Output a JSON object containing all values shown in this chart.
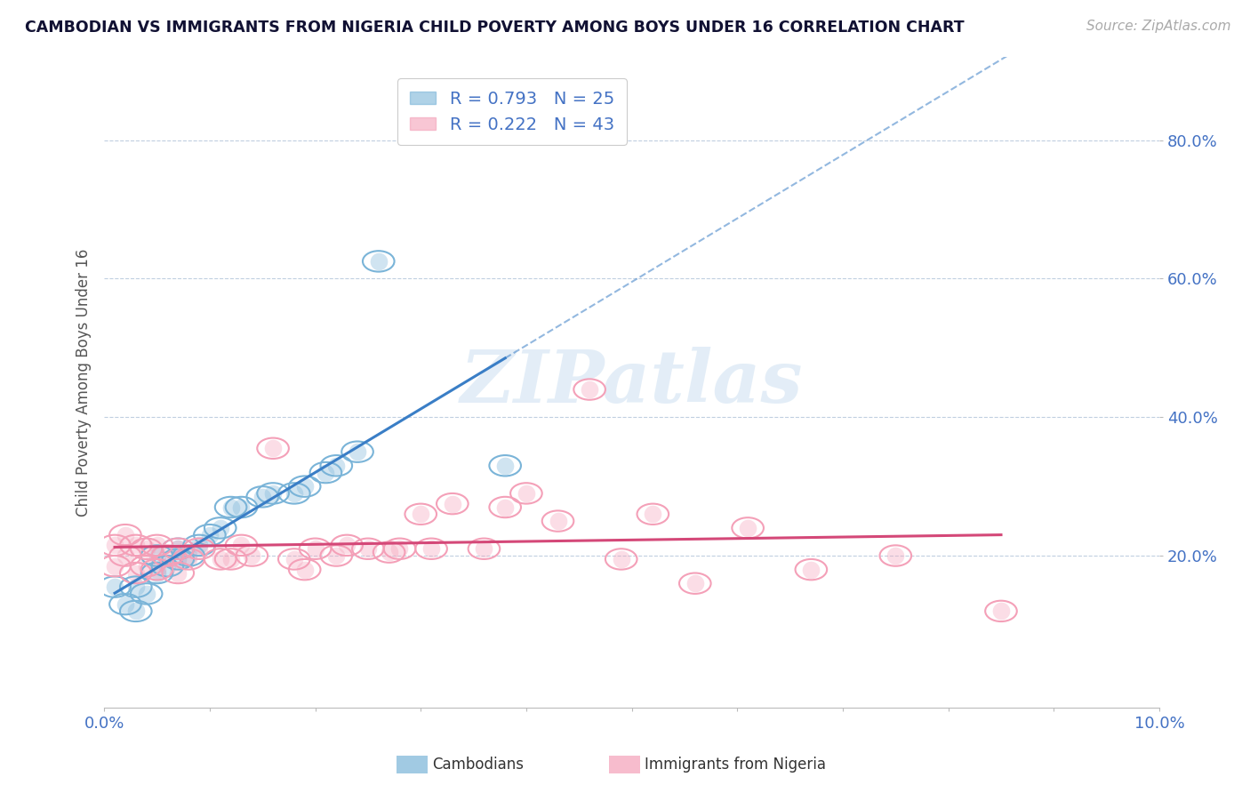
{
  "title": "CAMBODIAN VS IMMIGRANTS FROM NIGERIA CHILD POVERTY AMONG BOYS UNDER 16 CORRELATION CHART",
  "source": "Source: ZipAtlas.com",
  "ylabel": "Child Poverty Among Boys Under 16",
  "xlim": [
    0.0,
    0.1
  ],
  "ylim": [
    -0.02,
    0.92
  ],
  "cambodian_color": "#7ab4d8",
  "nigeria_color": "#f4a0b8",
  "cambodian_R": 0.793,
  "cambodian_N": 25,
  "nigeria_R": 0.222,
  "nigeria_N": 43,
  "cambodian_line_color": "#3a7ec6",
  "nigeria_line_color": "#d44878",
  "watermark_color": "#c8ddf0",
  "background_color": "#ffffff",
  "grid_color": "#c0cfe0",
  "title_color": "#111133",
  "axis_label_color": "#4472c4",
  "ytick_vals": [
    0.2,
    0.4,
    0.6,
    0.8
  ],
  "yticklabels": [
    "20.0%",
    "40.0%",
    "60.0%",
    "80.0%"
  ],
  "cambodian_scatter_x": [
    0.001,
    0.002,
    0.003,
    0.003,
    0.004,
    0.005,
    0.005,
    0.006,
    0.007,
    0.007,
    0.008,
    0.009,
    0.01,
    0.011,
    0.012,
    0.013,
    0.015,
    0.016,
    0.018,
    0.019,
    0.021,
    0.022,
    0.024,
    0.026,
    0.038
  ],
  "cambodian_scatter_y": [
    0.155,
    0.13,
    0.12,
    0.155,
    0.145,
    0.175,
    0.2,
    0.185,
    0.195,
    0.21,
    0.2,
    0.215,
    0.23,
    0.24,
    0.27,
    0.27,
    0.285,
    0.29,
    0.29,
    0.3,
    0.32,
    0.33,
    0.35,
    0.625,
    0.33
  ],
  "nigeria_scatter_x": [
    0.001,
    0.001,
    0.002,
    0.002,
    0.003,
    0.003,
    0.004,
    0.004,
    0.005,
    0.005,
    0.006,
    0.007,
    0.007,
    0.008,
    0.009,
    0.011,
    0.012,
    0.013,
    0.014,
    0.016,
    0.018,
    0.019,
    0.02,
    0.022,
    0.023,
    0.025,
    0.027,
    0.028,
    0.03,
    0.031,
    0.033,
    0.036,
    0.038,
    0.04,
    0.043,
    0.046,
    0.049,
    0.052,
    0.056,
    0.061,
    0.067,
    0.075,
    0.085
  ],
  "nigeria_scatter_y": [
    0.185,
    0.215,
    0.2,
    0.23,
    0.175,
    0.215,
    0.185,
    0.21,
    0.18,
    0.215,
    0.2,
    0.175,
    0.21,
    0.195,
    0.21,
    0.195,
    0.195,
    0.215,
    0.2,
    0.355,
    0.195,
    0.18,
    0.21,
    0.2,
    0.215,
    0.21,
    0.205,
    0.21,
    0.26,
    0.21,
    0.275,
    0.21,
    0.27,
    0.29,
    0.25,
    0.44,
    0.195,
    0.26,
    0.16,
    0.24,
    0.18,
    0.2,
    0.12
  ]
}
